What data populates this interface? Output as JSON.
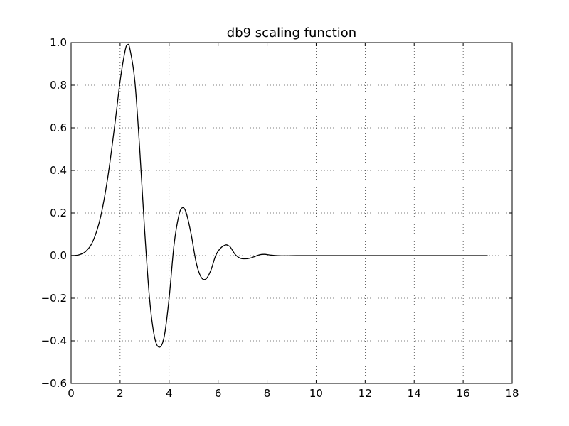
{
  "chart_data": {
    "type": "line",
    "title": "db9 scaling function",
    "xlabel": "",
    "ylabel": "",
    "xlim": [
      0,
      18
    ],
    "ylim": [
      -0.6,
      1.0
    ],
    "grid": true,
    "x_ticks": [
      "0",
      "2",
      "4",
      "6",
      "8",
      "10",
      "12",
      "14",
      "16",
      "18"
    ],
    "y_ticks": [
      "−0.6",
      "−0.4",
      "−0.2",
      "0.0",
      "0.2",
      "0.4",
      "0.6",
      "0.8",
      "1.0"
    ],
    "line_color": "#000000",
    "series": [
      {
        "x": [
          0,
          0.3,
          0.6,
          0.9,
          1.2,
          1.5,
          1.8,
          2.0,
          2.2,
          2.3,
          2.4,
          2.6,
          2.8,
          3.0,
          3.2,
          3.4,
          3.6,
          3.8,
          4.0,
          4.2,
          4.4,
          4.55,
          4.7,
          4.9,
          5.1,
          5.3,
          5.5,
          5.7,
          5.9,
          6.1,
          6.3,
          6.4,
          6.5,
          6.7,
          6.9,
          7.1,
          7.3,
          7.5,
          7.7,
          7.9,
          8.1,
          8.4,
          8.8,
          9.2,
          10,
          11,
          12,
          13,
          14,
          15,
          16,
          17
        ],
        "y": [
          0.0,
          0.003,
          0.02,
          0.07,
          0.18,
          0.37,
          0.63,
          0.82,
          0.96,
          0.99,
          0.97,
          0.82,
          0.5,
          0.12,
          -0.2,
          -0.38,
          -0.43,
          -0.38,
          -0.2,
          0.05,
          0.19,
          0.225,
          0.2,
          0.1,
          -0.03,
          -0.1,
          -0.11,
          -0.07,
          0.0,
          0.035,
          0.05,
          0.048,
          0.04,
          0.005,
          -0.012,
          -0.015,
          -0.012,
          -0.004,
          0.004,
          0.006,
          0.003,
          0.0,
          -0.001,
          0.0,
          0.0,
          0.0,
          0.0,
          0.0,
          0.0,
          0.0,
          0.0,
          0.0
        ]
      }
    ]
  }
}
